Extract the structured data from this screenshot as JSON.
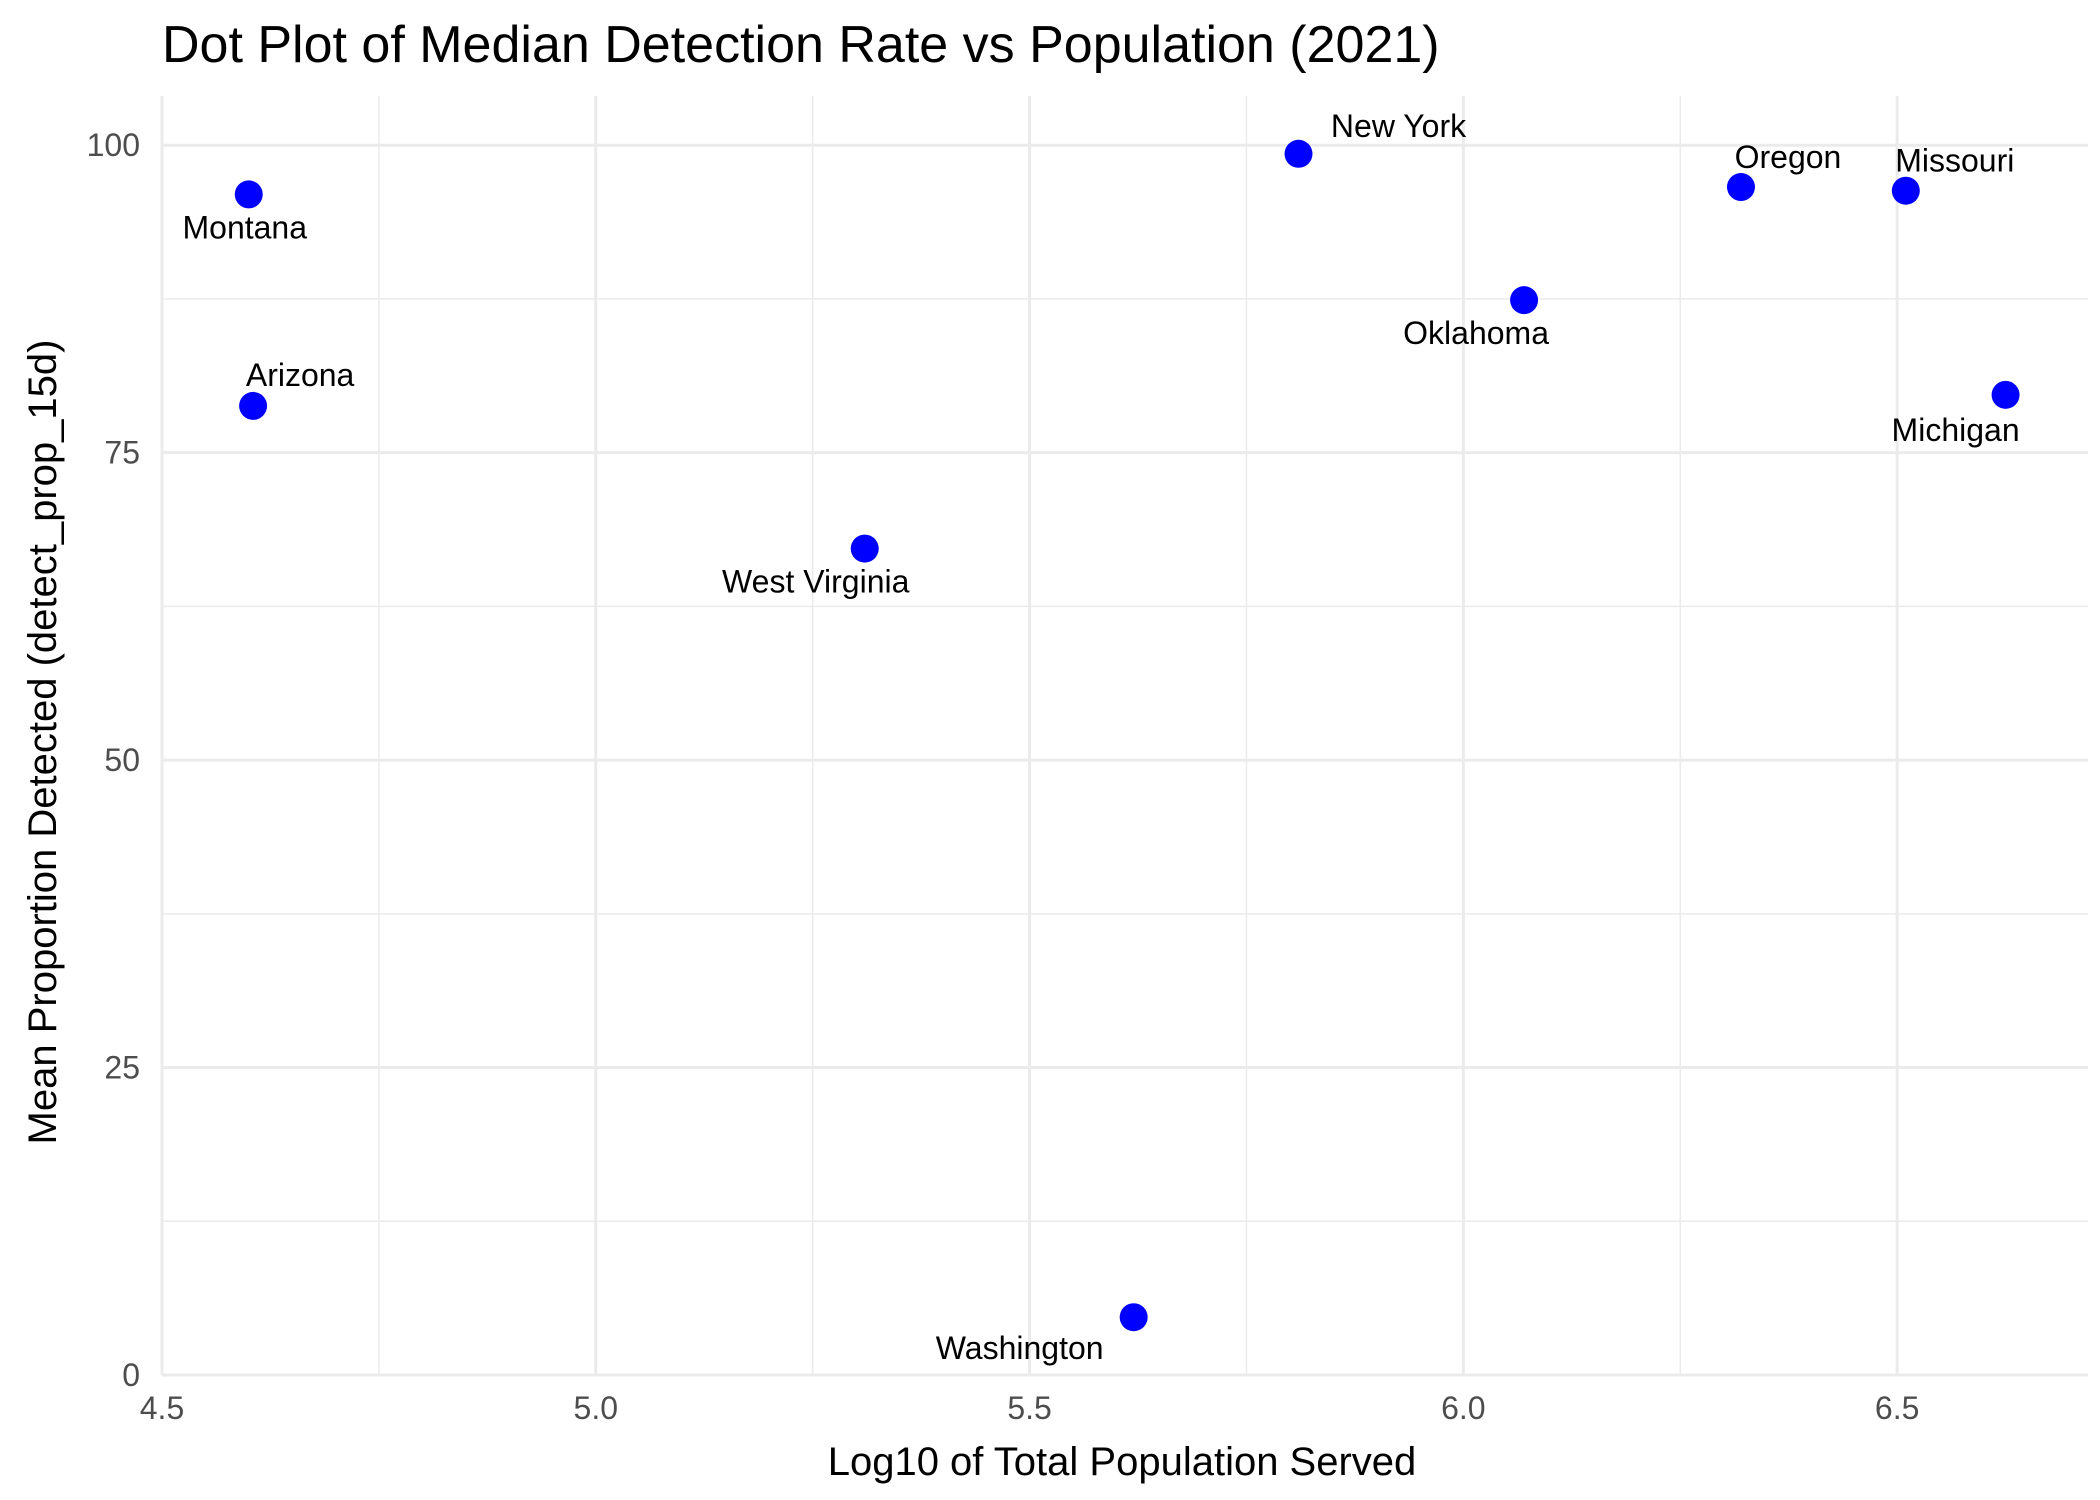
{
  "chart_data": {
    "type": "scatter",
    "title": "Dot Plot of Median Detection Rate vs Population (2021)",
    "xlabel": "Log10 of Total Population Served",
    "ylabel": "Mean Proportion Detected (detect_prop_15d)",
    "xlim": [
      4.5,
      6.72
    ],
    "ylim": [
      0,
      104
    ],
    "x_ticks": [
      "4.5",
      "5.0",
      "5.5",
      "6.0",
      "6.5"
    ],
    "y_ticks": [
      "0",
      "25",
      "50",
      "75",
      "100"
    ],
    "grid": true,
    "point_color": "#0000ff",
    "points": [
      {
        "label": "Montana",
        "x": 4.6,
        "y": 96.0
      },
      {
        "label": "Arizona",
        "x": 4.605,
        "y": 78.8
      },
      {
        "label": "West Virginia",
        "x": 5.31,
        "y": 67.2
      },
      {
        "label": "Washington",
        "x": 5.62,
        "y": 4.7
      },
      {
        "label": "New York",
        "x": 5.81,
        "y": 99.3
      },
      {
        "label": "Oklahoma",
        "x": 6.07,
        "y": 87.4
      },
      {
        "label": "Oregon",
        "x": 6.32,
        "y": 96.6
      },
      {
        "label": "Missouri",
        "x": 6.51,
        "y": 96.3
      },
      {
        "label": "Michigan",
        "x": 6.625,
        "y": 79.7
      }
    ]
  }
}
